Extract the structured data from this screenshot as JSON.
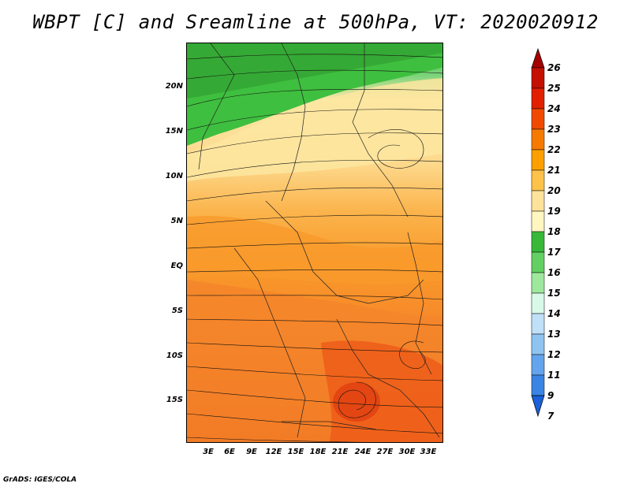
{
  "title": "WBPT [C] and Sreamline at 500hPa, VT: 2020020912",
  "footer": "GrADS: IGES/COLA",
  "axes": {
    "y_ticks": [
      "20N",
      "15N",
      "10N",
      "5N",
      "EQ",
      "5S",
      "10S",
      "15S"
    ],
    "x_ticks": [
      "3E",
      "6E",
      "9E",
      "12E",
      "15E",
      "18E",
      "21E",
      "24E",
      "27E",
      "30E",
      "33E"
    ]
  },
  "colorbar": {
    "labels": [
      "26",
      "25",
      "24",
      "23",
      "22",
      "21",
      "20",
      "19",
      "18",
      "17",
      "16",
      "15",
      "14",
      "13",
      "12",
      "11",
      "9",
      "7"
    ],
    "colors": [
      "#a50000",
      "#c41000",
      "#e02000",
      "#f04a00",
      "#f77a00",
      "#fba000",
      "#fdc24a",
      "#fde39a",
      "#fff6c0",
      "#38b838",
      "#62d062",
      "#9ee89e",
      "#d8f8e8",
      "#c0e0f8",
      "#90c4f0",
      "#64a4ec",
      "#3a84e4",
      "#1a60d8"
    ]
  },
  "legend_meta": {
    "field": "WBPT",
    "units": "C",
    "level": "500hPa"
  }
}
